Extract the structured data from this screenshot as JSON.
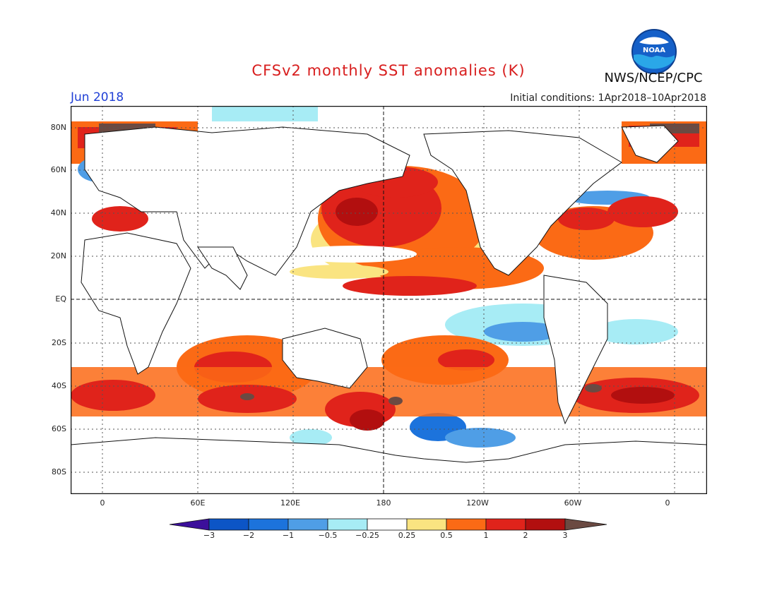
{
  "header": {
    "title": "CFSv2 monthly SST anomalies (K)",
    "org": "NWS/NCEP/CPC",
    "month": "Jun 2018",
    "initial_conditions": "Initial conditions: 1Apr2018–10Apr2018",
    "logo_icon": "noaa-logo-icon"
  },
  "axes": {
    "lat_labels": [
      "80N",
      "60N",
      "40N",
      "20N",
      "EQ",
      "20S",
      "40S",
      "60S",
      "80S"
    ],
    "lat_values": [
      80,
      60,
      40,
      20,
      0,
      -20,
      -40,
      -60,
      -80
    ],
    "lon_labels": [
      "0",
      "60E",
      "120E",
      "180",
      "120W",
      "60W",
      "0"
    ],
    "lon_values": [
      0,
      60,
      120,
      180,
      240,
      300,
      360
    ],
    "lon_range": [
      -20,
      380
    ],
    "lat_range": [
      -90,
      90
    ]
  },
  "colorbar": {
    "levels": [
      "−3",
      "−2",
      "−1",
      "−0.5",
      "−0.25",
      "0.25",
      "0.5",
      "1",
      "2",
      "3"
    ],
    "colors": [
      "#3c0f9b",
      "#0c55c6",
      "#1c73dc",
      "#4f9ee6",
      "#a7ecf5",
      "#ffffff",
      "#fae481",
      "#fb6a15",
      "#e0231b",
      "#b20f0f",
      "#6b4a42"
    ]
  },
  "chart_data": {
    "type": "heatmap",
    "title": "CFSv2 monthly SST anomalies (K)",
    "xlabel": "",
    "ylabel": "",
    "variable": "SST anomaly",
    "units": "K",
    "period": "Jun 2018",
    "x_ticks": [
      "0",
      "60E",
      "120E",
      "180",
      "120W",
      "60W",
      "0"
    ],
    "y_ticks": [
      "80N",
      "60N",
      "40N",
      "20N",
      "EQ",
      "20S",
      "40S",
      "60S",
      "80S"
    ],
    "color_levels": [
      -3,
      -2,
      -1,
      -0.5,
      -0.25,
      0.25,
      0.5,
      1,
      2,
      3
    ],
    "grid": true
  }
}
